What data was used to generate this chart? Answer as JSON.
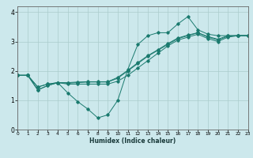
{
  "xlabel": "Humidex (Indice chaleur)",
  "ylabel": "",
  "bg_color": "#cce8ec",
  "grid_color": "#aacccc",
  "line_color": "#1a7a6e",
  "xlim": [
    0,
    23
  ],
  "ylim": [
    0,
    4.2
  ],
  "xticks": [
    0,
    1,
    2,
    3,
    4,
    5,
    6,
    7,
    8,
    9,
    10,
    11,
    12,
    13,
    14,
    15,
    16,
    17,
    18,
    19,
    20,
    21,
    22,
    23
  ],
  "yticks": [
    0,
    1,
    2,
    3,
    4
  ],
  "series": [
    [
      1.85,
      1.85,
      1.35,
      1.5,
      1.6,
      1.25,
      0.95,
      0.7,
      0.4,
      0.5,
      1.0,
      2.05,
      2.9,
      3.2,
      3.3,
      3.3,
      3.6,
      3.85,
      3.4,
      3.25,
      3.2,
      3.2,
      3.2,
      3.2
    ],
    [
      1.85,
      1.85,
      1.35,
      1.5,
      1.6,
      1.55,
      1.55,
      1.55,
      1.55,
      1.55,
      1.65,
      1.85,
      2.1,
      2.35,
      2.6,
      2.85,
      3.05,
      3.15,
      3.25,
      3.1,
      3.0,
      3.15,
      3.2,
      3.2
    ],
    [
      1.85,
      1.85,
      1.45,
      1.55,
      1.6,
      1.58,
      1.6,
      1.62,
      1.62,
      1.62,
      1.75,
      2.0,
      2.25,
      2.5,
      2.7,
      2.9,
      3.1,
      3.2,
      3.3,
      3.15,
      3.05,
      3.18,
      3.2,
      3.2
    ],
    [
      1.85,
      1.85,
      1.45,
      1.55,
      1.6,
      1.6,
      1.62,
      1.63,
      1.63,
      1.63,
      1.78,
      2.02,
      2.28,
      2.52,
      2.72,
      2.93,
      3.12,
      3.22,
      3.3,
      3.17,
      3.08,
      3.2,
      3.2,
      3.2
    ]
  ]
}
